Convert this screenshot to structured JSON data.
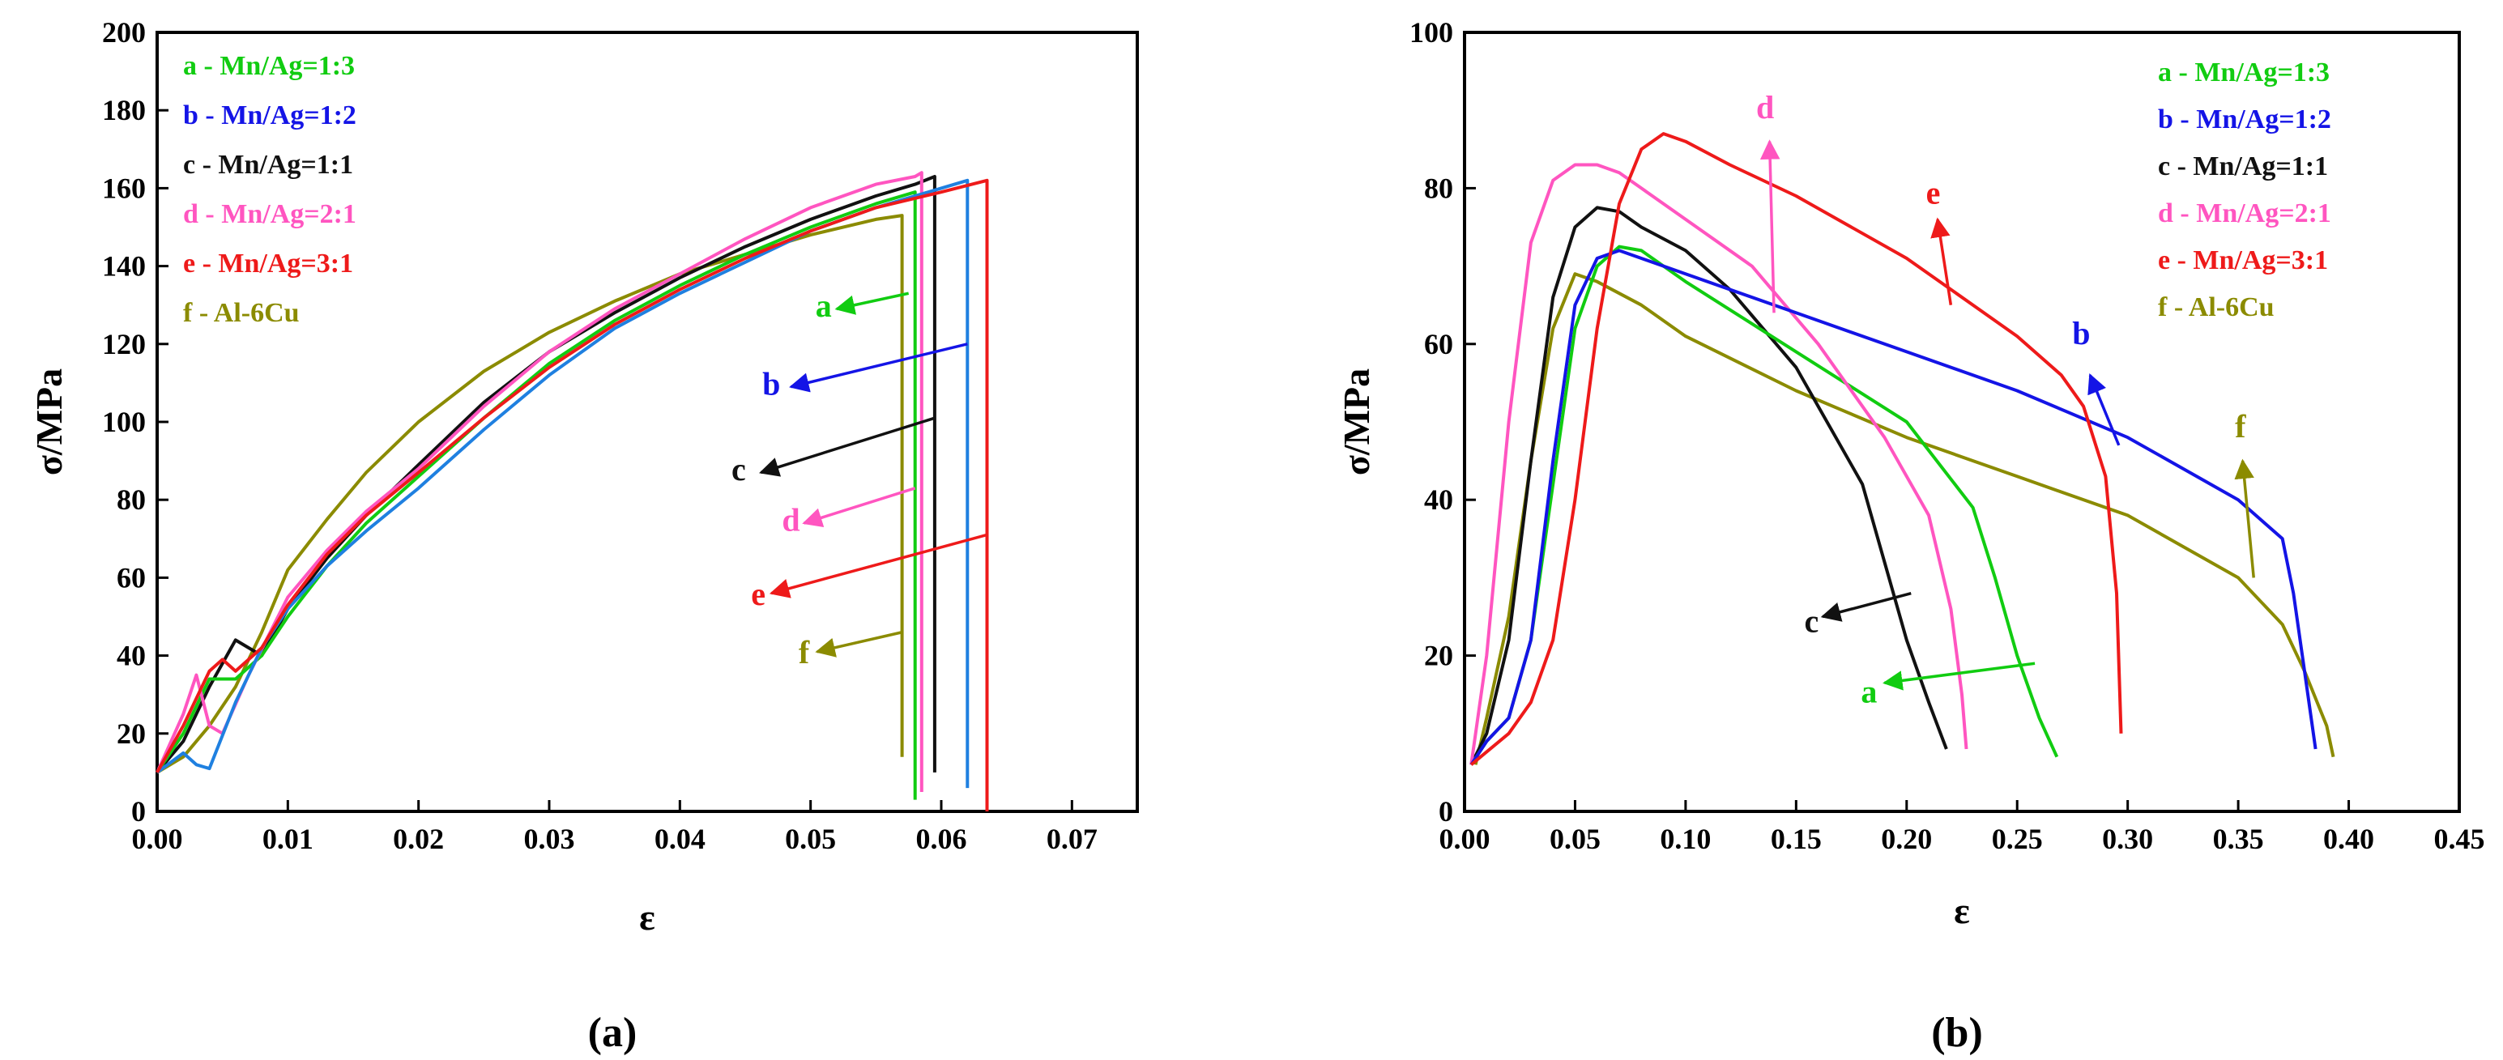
{
  "colors": {
    "a": "#11cc11",
    "b": "#1414e6",
    "c": "#111111",
    "d": "#ff55c0",
    "e": "#ee1a1a",
    "f": "#8b8b00",
    "b_left": "#1f80e0"
  },
  "chart_data": [
    {
      "type": "line",
      "panel_label": "(a)",
      "xlabel": "ε",
      "ylabel": "σ/MPa",
      "xlim": [
        0,
        0.075
      ],
      "ylim": [
        0,
        200
      ],
      "xticks": [
        "0.00",
        "0.01",
        "0.02",
        "0.03",
        "0.04",
        "0.05",
        "0.06",
        "0.07"
      ],
      "yticks": [
        "0",
        "20",
        "40",
        "60",
        "80",
        "100",
        "120",
        "140",
        "160",
        "180",
        "200"
      ],
      "legend": {
        "position": "top-left",
        "entries": [
          {
            "key": "a",
            "label": "a - Mn/Ag=1:3"
          },
          {
            "key": "b",
            "label": "b - Mn/Ag=1:2"
          },
          {
            "key": "c",
            "label": "c - Mn/Ag=1:1"
          },
          {
            "key": "d",
            "label": "d - Mn/Ag=2:1"
          },
          {
            "key": "e",
            "label": "e - Mn/Ag=3:1"
          },
          {
            "key": "f",
            "label": "f - Al-6Cu"
          }
        ]
      },
      "series": [
        {
          "key": "f",
          "name": "f - Al-6Cu",
          "x": [
            0.0,
            0.002,
            0.004,
            0.006,
            0.008,
            0.01,
            0.013,
            0.016,
            0.02,
            0.025,
            0.03,
            0.035,
            0.04,
            0.045,
            0.05,
            0.055,
            0.057,
            0.057
          ],
          "y": [
            10,
            14,
            22,
            32,
            46,
            62,
            75,
            87,
            100,
            113,
            123,
            131,
            138,
            143,
            148,
            152,
            153,
            14
          ]
        },
        {
          "key": "c",
          "name": "c - Mn/Ag=1:1",
          "x": [
            0.0,
            0.002,
            0.004,
            0.006,
            0.008,
            0.01,
            0.013,
            0.016,
            0.02,
            0.025,
            0.03,
            0.035,
            0.04,
            0.045,
            0.05,
            0.055,
            0.058,
            0.0595,
            0.0595
          ],
          "y": [
            10,
            18,
            32,
            44,
            40,
            52,
            65,
            76,
            89,
            105,
            118,
            128,
            137,
            145,
            152,
            158,
            161,
            163,
            10
          ]
        },
        {
          "key": "a",
          "name": "a - Mn/Ag=1:3",
          "x": [
            0.0,
            0.002,
            0.004,
            0.006,
            0.008,
            0.01,
            0.013,
            0.016,
            0.02,
            0.025,
            0.03,
            0.035,
            0.04,
            0.045,
            0.05,
            0.055,
            0.058,
            0.058
          ],
          "y": [
            10,
            20,
            34,
            34,
            40,
            50,
            63,
            74,
            86,
            101,
            115,
            126,
            135,
            143,
            150,
            156,
            159,
            3
          ]
        },
        {
          "key": "d",
          "name": "d - Mn/Ag=2:1",
          "x": [
            0.0,
            0.002,
            0.003,
            0.004,
            0.005,
            0.007,
            0.01,
            0.013,
            0.016,
            0.02,
            0.025,
            0.03,
            0.035,
            0.04,
            0.045,
            0.05,
            0.055,
            0.058,
            0.0585,
            0.0585
          ],
          "y": [
            10,
            25,
            35,
            22,
            20,
            35,
            55,
            67,
            77,
            88,
            104,
            118,
            129,
            138,
            147,
            155,
            161,
            163,
            164,
            5
          ]
        },
        {
          "key": "b",
          "name": "b - Mn/Ag=1:2",
          "x": [
            0.0,
            0.002,
            0.003,
            0.004,
            0.006,
            0.008,
            0.01,
            0.013,
            0.016,
            0.02,
            0.025,
            0.03,
            0.035,
            0.04,
            0.045,
            0.05,
            0.055,
            0.06,
            0.062,
            0.062
          ],
          "y": [
            10,
            15,
            12,
            11,
            28,
            42,
            52,
            63,
            72,
            83,
            98,
            112,
            124,
            133,
            141,
            149,
            155,
            160,
            162,
            6
          ]
        },
        {
          "key": "e",
          "name": "e - Mn/Ag=3:1",
          "x": [
            0.0,
            0.002,
            0.004,
            0.005,
            0.006,
            0.008,
            0.01,
            0.013,
            0.016,
            0.02,
            0.025,
            0.03,
            0.035,
            0.04,
            0.045,
            0.05,
            0.055,
            0.06,
            0.0635,
            0.0635
          ],
          "y": [
            10,
            22,
            36,
            39,
            36,
            42,
            53,
            66,
            76,
            87,
            101,
            114,
            125,
            134,
            142,
            149,
            155,
            159,
            162,
            0
          ]
        }
      ],
      "annotations": [
        {
          "key": "a",
          "text": "a",
          "tail": [
            0.0575,
            133
          ],
          "head": [
            0.052,
            129
          ],
          "label": [
            0.051,
            127
          ]
        },
        {
          "key": "b",
          "text": "b",
          "tail": [
            0.062,
            120
          ],
          "head": [
            0.0485,
            109
          ],
          "label": [
            0.047,
            107
          ]
        },
        {
          "key": "c",
          "text": "c",
          "tail": [
            0.0595,
            101
          ],
          "head": [
            0.0462,
            87
          ],
          "label": [
            0.0445,
            85
          ]
        },
        {
          "key": "d",
          "text": "d",
          "tail": [
            0.058,
            83
          ],
          "head": [
            0.0495,
            74
          ],
          "label": [
            0.0485,
            72
          ]
        },
        {
          "key": "e",
          "text": "e",
          "tail": [
            0.0635,
            71
          ],
          "head": [
            0.047,
            56
          ],
          "label": [
            0.046,
            53
          ]
        },
        {
          "key": "f",
          "text": "f",
          "tail": [
            0.057,
            46
          ],
          "head": [
            0.0505,
            41
          ],
          "label": [
            0.0495,
            38
          ]
        }
      ]
    },
    {
      "type": "line",
      "panel_label": "(b)",
      "xlabel": "ε",
      "ylabel": "σ/MPa",
      "xlim": [
        0,
        0.45
      ],
      "ylim": [
        0,
        100
      ],
      "xticks": [
        "0.00",
        "0.05",
        "0.10",
        "0.15",
        "0.20",
        "0.25",
        "0.30",
        "0.35",
        "0.40",
        "0.45"
      ],
      "yticks": [
        "0",
        "20",
        "40",
        "60",
        "80",
        "100"
      ],
      "legend": {
        "position": "top-right",
        "entries": [
          {
            "key": "a",
            "label": "a - Mn/Ag=1:3"
          },
          {
            "key": "b",
            "label": "b - Mn/Ag=1:2"
          },
          {
            "key": "c",
            "label": "c - Mn/Ag=1:1"
          },
          {
            "key": "d",
            "label": "d - Mn/Ag=2:1"
          },
          {
            "key": "e",
            "label": "e - Mn/Ag=3:1"
          },
          {
            "key": "f",
            "label": "f - Al-6Cu"
          }
        ]
      },
      "series": [
        {
          "key": "f",
          "name": "f - Al-6Cu",
          "x": [
            0.005,
            0.01,
            0.02,
            0.03,
            0.04,
            0.05,
            0.06,
            0.08,
            0.1,
            0.15,
            0.2,
            0.25,
            0.3,
            0.35,
            0.37,
            0.38,
            0.39,
            0.393
          ],
          "y": [
            6,
            12,
            25,
            45,
            62,
            69,
            68,
            65,
            61,
            54,
            48,
            43,
            38,
            30,
            24,
            18,
            11,
            7
          ]
        },
        {
          "key": "c",
          "name": "c - Mn/Ag=1:1",
          "x": [
            0.003,
            0.01,
            0.02,
            0.03,
            0.04,
            0.05,
            0.06,
            0.07,
            0.08,
            0.1,
            0.12,
            0.15,
            0.18,
            0.19,
            0.2,
            0.21,
            0.218
          ],
          "y": [
            6,
            10,
            22,
            45,
            66,
            75,
            77.5,
            77,
            75,
            72,
            67,
            57,
            42,
            32,
            22,
            14,
            8
          ]
        },
        {
          "key": "a",
          "name": "a - Mn/Ag=1:3",
          "x": [
            0.003,
            0.01,
            0.02,
            0.03,
            0.04,
            0.05,
            0.06,
            0.07,
            0.08,
            0.1,
            0.15,
            0.2,
            0.23,
            0.24,
            0.25,
            0.26,
            0.268
          ],
          "y": [
            6,
            9,
            12,
            22,
            42,
            62,
            70,
            72.5,
            72,
            68,
            59,
            50,
            39,
            30,
            20,
            12,
            7
          ]
        },
        {
          "key": "d",
          "name": "d - Mn/Ag=2:1",
          "x": [
            0.003,
            0.01,
            0.02,
            0.03,
            0.04,
            0.05,
            0.06,
            0.07,
            0.08,
            0.1,
            0.13,
            0.16,
            0.19,
            0.21,
            0.22,
            0.225,
            0.227
          ],
          "y": [
            6,
            20,
            50,
            73,
            81,
            83,
            83,
            82,
            80,
            76,
            70,
            60,
            48,
            38,
            26,
            15,
            8
          ]
        },
        {
          "key": "b",
          "name": "b - Mn/Ag=1:2",
          "x": [
            0.003,
            0.01,
            0.02,
            0.03,
            0.04,
            0.05,
            0.06,
            0.07,
            0.08,
            0.1,
            0.15,
            0.2,
            0.25,
            0.3,
            0.35,
            0.37,
            0.375,
            0.38,
            0.385
          ],
          "y": [
            6,
            9,
            12,
            22,
            45,
            65,
            71,
            72,
            71,
            69,
            64,
            59,
            54,
            48,
            40,
            35,
            28,
            18,
            8
          ]
        },
        {
          "key": "e",
          "name": "e - Mn/Ag=3:1",
          "x": [
            0.003,
            0.02,
            0.03,
            0.04,
            0.05,
            0.06,
            0.07,
            0.08,
            0.09,
            0.1,
            0.12,
            0.15,
            0.2,
            0.25,
            0.27,
            0.28,
            0.29,
            0.295,
            0.297
          ],
          "y": [
            6,
            10,
            14,
            22,
            40,
            62,
            78,
            85,
            87,
            86,
            83,
            79,
            71,
            61,
            56,
            52,
            43,
            28,
            10
          ]
        }
      ],
      "annotations": [
        {
          "key": "a",
          "text": "a",
          "tail": [
            0.258,
            19
          ],
          "head": [
            0.19,
            16.5
          ],
          "label": [
            0.183,
            14
          ]
        },
        {
          "key": "b",
          "text": "b",
          "tail": [
            0.296,
            47
          ],
          "head": [
            0.283,
            56
          ],
          "label": [
            0.279,
            60
          ]
        },
        {
          "key": "c",
          "text": "c",
          "tail": [
            0.202,
            28
          ],
          "head": [
            0.162,
            25
          ],
          "label": [
            0.157,
            23
          ]
        },
        {
          "key": "d",
          "text": "d",
          "tail": [
            0.14,
            64
          ],
          "head": [
            0.138,
            86
          ],
          "label": [
            0.136,
            89
          ]
        },
        {
          "key": "e",
          "text": "e",
          "tail": [
            0.22,
            65
          ],
          "head": [
            0.214,
            76
          ],
          "label": [
            0.212,
            78
          ]
        },
        {
          "key": "f",
          "text": "f",
          "tail": [
            0.357,
            30
          ],
          "head": [
            0.352,
            45
          ],
          "label": [
            0.351,
            48
          ]
        }
      ]
    }
  ]
}
